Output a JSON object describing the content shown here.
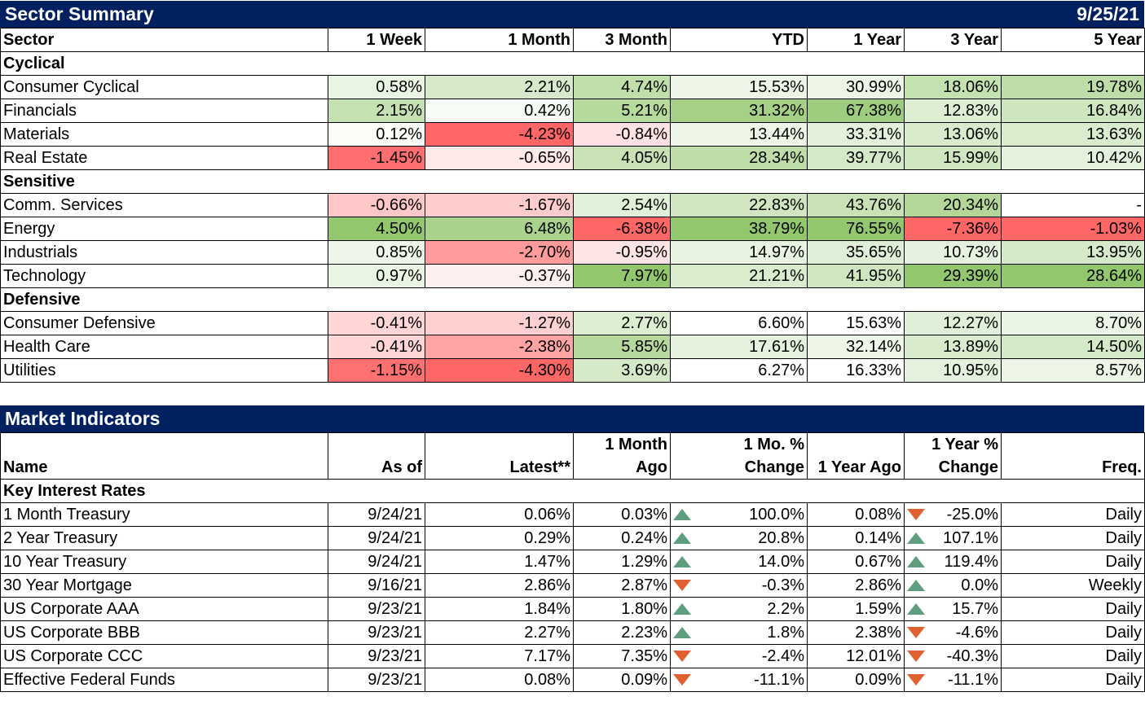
{
  "sector_summary": {
    "title": "Sector Summary",
    "date": "9/25/21",
    "headers": [
      "Sector",
      "1 Week",
      "1 Month",
      "3 Month",
      "YTD",
      "1 Year",
      "3 Year",
      "5 Year"
    ],
    "groups": [
      {
        "name": "Cyclical",
        "rows": [
          {
            "name": "Consumer Cyclical",
            "values": [
              "0.58%",
              "2.21%",
              "4.74%",
              "15.53%",
              "30.99%",
              "18.06%",
              "19.78%"
            ],
            "colors": [
              "#e9f4e2",
              "#d6eacb",
              "#c0dfaa",
              "#ecf5e6",
              "#ecf5e6",
              "#c4e1b0",
              "#bfdda8"
            ]
          },
          {
            "name": "Financials",
            "values": [
              "2.15%",
              "0.42%",
              "5.21%",
              "31.32%",
              "67.38%",
              "12.83%",
              "16.84%"
            ],
            "colors": [
              "#c5e1b2",
              "#f7fbf5",
              "#b6d99c",
              "#a6d087",
              "#9fcd80",
              "#ddeed2",
              "#cee6bf"
            ]
          },
          {
            "name": "Materials",
            "values": [
              "0.12%",
              "-4.23%",
              "-0.84%",
              "13.44%",
              "33.31%",
              "13.06%",
              "13.63%"
            ],
            "colors": [
              "#fbfdf9",
              "#ff6666",
              "#ffe1e1",
              "#eef6e8",
              "#e3f0da",
              "#d8ebcd",
              "#d9ecce"
            ]
          },
          {
            "name": "Real Estate",
            "values": [
              "-1.45%",
              "-0.65%",
              "4.05%",
              "28.34%",
              "39.77%",
              "15.99%",
              "10.42%"
            ],
            "colors": [
              "#ff6f6f",
              "#ffe8e8",
              "#c8e2b5",
              "#bfdda8",
              "#d4e9c7",
              "#cfe7c0",
              "#e4f1dc"
            ]
          }
        ]
      },
      {
        "name": "Sensitive",
        "rows": [
          {
            "name": "Comm. Services",
            "values": [
              "-0.66%",
              "-1.67%",
              "2.54%",
              "22.83%",
              "43.76%",
              "20.34%",
              "-"
            ],
            "colors": [
              "#ffc7c7",
              "#ffcccc",
              "#e1f0d8",
              "#cfe6c0",
              "#c8e2b5",
              "#b4d799",
              "#ffffff"
            ]
          },
          {
            "name": "Energy",
            "values": [
              "4.50%",
              "6.48%",
              "-6.38%",
              "38.79%",
              "76.55%",
              "-7.36%",
              "-1.03%"
            ],
            "colors": [
              "#92c76d",
              "#a9d28c",
              "#ff6666",
              "#92c76d",
              "#92c76d",
              "#ff6666",
              "#ff6666"
            ]
          },
          {
            "name": "Industrials",
            "values": [
              "0.85%",
              "-2.70%",
              "-0.95%",
              "14.97%",
              "35.65%",
              "10.73%",
              "13.95%"
            ],
            "colors": [
              "#eef6e9",
              "#ff9b9b",
              "#ffe4e4",
              "#e8f3e1",
              "#dfeed6",
              "#e6f2df",
              "#d5eac8"
            ]
          },
          {
            "name": "Technology",
            "values": [
              "0.97%",
              "-0.37%",
              "7.97%",
              "21.21%",
              "41.95%",
              "29.39%",
              "28.64%"
            ],
            "colors": [
              "#e9f4e2",
              "#fff0f0",
              "#92c76d",
              "#d9ecce",
              "#cfe7c0",
              "#92c76d",
              "#92c76d"
            ]
          }
        ]
      },
      {
        "name": "Defensive",
        "rows": [
          {
            "name": "Consumer Defensive",
            "values": [
              "-0.41%",
              "-1.27%",
              "2.77%",
              "6.60%",
              "15.63%",
              "12.27%",
              "8.70%"
            ],
            "colors": [
              "#ffd5d5",
              "#ffd0d0",
              "#dcedd1",
              "#ffffff",
              "#ffffff",
              "#e0efd7",
              "#ebf5e5"
            ]
          },
          {
            "name": "Health Care",
            "values": [
              "-0.41%",
              "-2.38%",
              "5.85%",
              "17.61%",
              "32.14%",
              "13.89%",
              "14.50%"
            ],
            "colors": [
              "#ffd5d5",
              "#ffa4a4",
              "#b7d99e",
              "#e4f1dc",
              "#eef6e8",
              "#d8ebcd",
              "#d4e9c7"
            ]
          },
          {
            "name": "Utilities",
            "values": [
              "-1.15%",
              "-4.30%",
              "3.69%",
              "6.27%",
              "16.33%",
              "10.95%",
              "8.57%"
            ],
            "colors": [
              "#ff7171",
              "#ff6666",
              "#d4e9c7",
              "#ffffff",
              "#ffffff",
              "#e4f1dc",
              "#ecf5e6"
            ]
          }
        ]
      }
    ]
  },
  "market_indicators": {
    "title": "Market Indicators",
    "headers": {
      "name": "Name",
      "as_of": "As of",
      "latest": "Latest**",
      "month_ago_1": "1 Month",
      "month_ago_2": "Ago",
      "mo_change_1": "1 Mo. %",
      "mo_change_2": "Change",
      "year_ago": "1 Year Ago",
      "yr_change_1": "1 Year %",
      "yr_change_2": "Change",
      "freq": "Freq."
    },
    "group_name": "Key Interest Rates",
    "rows": [
      {
        "name": "1 Month Treasury",
        "as_of": "9/24/21",
        "latest": "0.06%",
        "month_ago": "0.03%",
        "mo_dir": "up",
        "mo_change": "100.0%",
        "year_ago": "0.08%",
        "yr_dir": "down",
        "yr_change": "-25.0%",
        "freq": "Daily"
      },
      {
        "name": "2 Year Treasury",
        "as_of": "9/24/21",
        "latest": "0.29%",
        "month_ago": "0.24%",
        "mo_dir": "up",
        "mo_change": "20.8%",
        "year_ago": "0.14%",
        "yr_dir": "up",
        "yr_change": "107.1%",
        "freq": "Daily"
      },
      {
        "name": "10 Year Treasury",
        "as_of": "9/24/21",
        "latest": "1.47%",
        "month_ago": "1.29%",
        "mo_dir": "up",
        "mo_change": "14.0%",
        "year_ago": "0.67%",
        "yr_dir": "up",
        "yr_change": "119.4%",
        "freq": "Daily"
      },
      {
        "name": "30 Year Mortgage",
        "as_of": "9/16/21",
        "latest": "2.86%",
        "month_ago": "2.87%",
        "mo_dir": "down",
        "mo_change": "-0.3%",
        "year_ago": "2.86%",
        "yr_dir": "up",
        "yr_change": "0.0%",
        "freq": "Weekly"
      },
      {
        "name": "US Corporate AAA",
        "as_of": "9/23/21",
        "latest": "1.84%",
        "month_ago": "1.80%",
        "mo_dir": "up",
        "mo_change": "2.2%",
        "year_ago": "1.59%",
        "yr_dir": "up",
        "yr_change": "15.7%",
        "freq": "Daily"
      },
      {
        "name": "US Corporate BBB",
        "as_of": "9/23/21",
        "latest": "2.27%",
        "month_ago": "2.23%",
        "mo_dir": "up",
        "mo_change": "1.8%",
        "year_ago": "2.38%",
        "yr_dir": "down",
        "yr_change": "-4.6%",
        "freq": "Daily"
      },
      {
        "name": "US Corporate CCC",
        "as_of": "9/23/21",
        "latest": "7.17%",
        "month_ago": "7.35%",
        "mo_dir": "down",
        "mo_change": "-2.4%",
        "year_ago": "12.01%",
        "yr_dir": "down",
        "yr_change": "-40.3%",
        "freq": "Daily"
      },
      {
        "name": "Effective Federal Funds",
        "as_of": "9/23/21",
        "latest": "0.08%",
        "month_ago": "0.09%",
        "mo_dir": "down",
        "mo_change": "-11.1%",
        "year_ago": "0.09%",
        "yr_dir": "down",
        "yr_change": "-11.1%",
        "freq": "Daily"
      }
    ]
  }
}
